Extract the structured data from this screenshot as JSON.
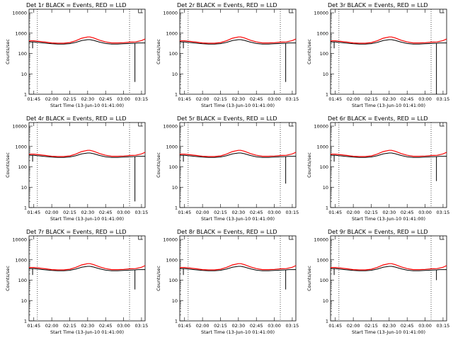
{
  "chart_data": [
    {
      "type": "line",
      "title": "Det 1r BLACK = Events, RED = LLD",
      "spike_end": 4
    },
    {
      "type": "line",
      "title": "Det 2r BLACK = Events, RED = LLD",
      "spike_end": 4
    },
    {
      "type": "line",
      "title": "Det 3r BLACK = Events, RED = LLD",
      "spike_end": 1
    },
    {
      "type": "line",
      "title": "Det 4r BLACK = Events, RED = LLD",
      "spike_end": 2
    },
    {
      "type": "line",
      "title": "Det 5r BLACK = Events, RED = LLD",
      "spike_end": 15
    },
    {
      "type": "line",
      "title": "Det 6r BLACK = Events, RED = LLD",
      "spike_end": 20
    },
    {
      "type": "line",
      "title": "Det 7r BLACK = Events, RED = LLD",
      "spike_end": 35
    },
    {
      "type": "line",
      "title": "Det 8r BLACK = Events, RED = LLD",
      "spike_end": 35
    },
    {
      "type": "line",
      "title": "Det 9r BLACK = Events, RED = LLD",
      "spike_end": 100
    }
  ],
  "shared": {
    "xlabel": "Start Time (13-Jun-10 01:41:00)",
    "ylabel": "Counts/sec",
    "x_ticks": [
      "01:45",
      "02:00",
      "02:15",
      "02:30",
      "02:45",
      "03:00",
      "03:15"
    ],
    "x_tick_minutes": [
      105,
      120,
      135,
      150,
      165,
      180,
      195
    ],
    "xlim_minutes": [
      101,
      198
    ],
    "y_ticks": [
      "1",
      "10",
      "100",
      "1000",
      "10000"
    ],
    "ylim": [
      1,
      15000
    ],
    "yscale": "log",
    "vlines_minutes": [
      108,
      185
    ],
    "series_black": {
      "name": "Events",
      "color": "#000000",
      "x": [
        101,
        105,
        110,
        115,
        120,
        125,
        130,
        135,
        140,
        145,
        150,
        152,
        155,
        160,
        165,
        170,
        175,
        180,
        185,
        190,
        192,
        198
      ],
      "y": [
        370,
        370,
        345,
        320,
        300,
        290,
        290,
        305,
        350,
        430,
        480,
        480,
        440,
        360,
        310,
        290,
        290,
        300,
        310,
        320,
        330,
        330
      ]
    },
    "series_red": {
      "name": "LLD",
      "color": "#ff0000",
      "x": [
        101,
        105,
        110,
        115,
        120,
        125,
        130,
        135,
        140,
        145,
        150,
        152,
        155,
        160,
        165,
        170,
        175,
        180,
        185,
        190,
        195,
        198
      ],
      "y": [
        420,
        420,
        390,
        360,
        330,
        320,
        320,
        345,
        420,
        560,
        650,
        650,
        580,
        450,
        370,
        330,
        330,
        340,
        360,
        370,
        430,
        520
      ]
    }
  }
}
